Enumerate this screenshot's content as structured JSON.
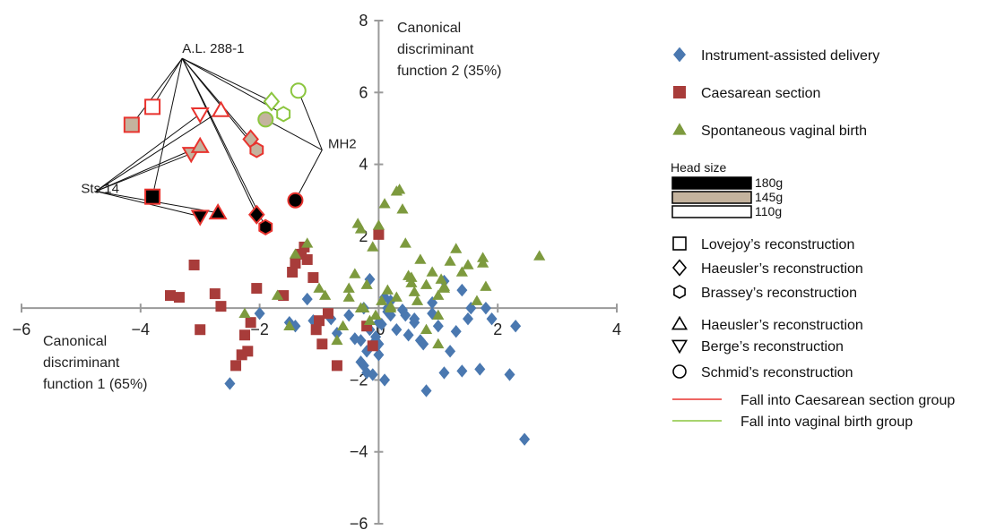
{
  "chart_data": {
    "type": "scatter",
    "xlabel": [
      "Canonical",
      "discriminant",
      "function 1 (65%)"
    ],
    "ylabel": [
      "Canonical",
      "discriminant",
      "function 2 (35%)"
    ],
    "xlim": [
      -6,
      4
    ],
    "ylim": [
      -6,
      8
    ],
    "x_ticks": [
      "−6",
      "−4",
      "−2",
      "0",
      "2",
      "4"
    ],
    "y_ticks": [
      "−6",
      "−4",
      "−2",
      "2",
      "4",
      "6",
      "8"
    ],
    "grid": false,
    "legend_position": "right",
    "series": [
      {
        "name": "Instrument-assisted delivery",
        "marker": "diamond",
        "color": "#4a78b0",
        "x": [
          -2.5,
          -2.0,
          -1.5,
          -1.1,
          -1.2,
          -1.4,
          -0.8,
          -0.7,
          -0.5,
          -0.4,
          -0.3,
          -0.25,
          -0.2,
          -0.15,
          -0.1,
          -0.05,
          0.0,
          0.05,
          0.1,
          0.15,
          -0.3,
          -0.2,
          -0.1,
          0.0,
          0.1,
          0.2,
          0.3,
          0.4,
          0.5,
          0.6,
          0.7,
          0.8,
          0.9,
          1.0,
          1.1,
          1.2,
          1.3,
          1.4,
          1.5,
          1.55,
          1.7,
          1.9,
          2.2,
          2.3,
          2.45,
          -0.25,
          -0.15,
          0.2,
          0.45,
          0.9,
          1.1,
          1.4,
          1.8,
          0.6,
          0.75,
          0.0,
          0.15
        ],
        "y": [
          -2.1,
          -0.15,
          -0.4,
          -0.35,
          0.25,
          -0.5,
          -0.3,
          -0.7,
          -0.2,
          -0.85,
          -0.9,
          -1.6,
          -1.2,
          -0.6,
          -1.0,
          -0.8,
          -0.4,
          -0.45,
          0.3,
          -0.1,
          -1.5,
          -1.8,
          -1.85,
          -1.3,
          -2.0,
          -0.2,
          -0.6,
          -0.05,
          -0.75,
          -0.4,
          -0.9,
          -2.3,
          -0.15,
          -0.5,
          -1.8,
          -1.2,
          -0.65,
          -1.75,
          -0.3,
          0.0,
          -1.7,
          -0.3,
          -1.85,
          -0.5,
          -3.65,
          0.0,
          0.8,
          0.2,
          -0.2,
          0.15,
          0.75,
          0.5,
          0.0,
          -0.3,
          -1.0,
          -1.0,
          0.0
        ]
      },
      {
        "name": "Caesarean section",
        "marker": "square",
        "color": "#a83c3a",
        "x": [
          -3.5,
          -3.35,
          -3.1,
          -3.0,
          -2.75,
          -2.65,
          -2.4,
          -2.3,
          -2.25,
          -2.2,
          -2.15,
          -2.05,
          -1.6,
          -1.45,
          -1.4,
          -1.3,
          -1.25,
          -1.2,
          -1.1,
          -1.05,
          -1.0,
          -0.95,
          -0.85,
          -0.7,
          -0.2,
          -0.1,
          0.0
        ],
        "y": [
          0.35,
          0.3,
          1.2,
          -0.6,
          0.4,
          0.05,
          -1.6,
          -1.3,
          -0.75,
          -1.2,
          -0.4,
          0.55,
          0.35,
          1.0,
          1.25,
          1.5,
          1.7,
          1.35,
          0.85,
          -0.6,
          -0.35,
          -1.0,
          -0.15,
          -1.6,
          -0.5,
          -1.05,
          2.05
        ]
      },
      {
        "name": "Spontaneous vaginal birth",
        "marker": "triangle",
        "color": "#7d9a3e",
        "x": [
          -2.25,
          -1.7,
          -1.5,
          -1.4,
          -1.2,
          -1.0,
          -0.9,
          -0.7,
          -0.6,
          -0.5,
          -0.4,
          -0.35,
          -0.3,
          -0.2,
          -0.1,
          -0.05,
          0.0,
          0.1,
          0.15,
          0.2,
          0.3,
          0.35,
          0.4,
          0.45,
          0.5,
          0.55,
          0.6,
          0.7,
          0.8,
          0.9,
          1.0,
          1.05,
          1.1,
          1.2,
          1.3,
          1.4,
          1.5,
          1.65,
          1.75,
          1.8,
          2.7,
          -0.3,
          -0.15,
          0.05,
          0.55,
          0.65,
          1.0,
          1.1,
          1.75,
          -0.5,
          -0.25,
          0.2,
          0.3,
          0.8,
          1.0
        ],
        "y": [
          -0.15,
          0.35,
          -0.5,
          1.5,
          1.8,
          0.55,
          0.35,
          -0.9,
          -0.5,
          0.55,
          0.95,
          2.35,
          2.2,
          0.65,
          1.7,
          -0.2,
          2.3,
          2.9,
          0.5,
          0.05,
          3.25,
          3.3,
          2.75,
          1.8,
          0.9,
          0.7,
          0.45,
          1.35,
          -0.6,
          1.0,
          -1.0,
          0.8,
          0.6,
          1.3,
          1.65,
          1.0,
          1.2,
          0.2,
          1.4,
          0.6,
          1.45,
          0.0,
          -0.35,
          0.2,
          0.85,
          0.2,
          0.35,
          0.55,
          1.25,
          0.3,
          0.0,
          0.0,
          0.3,
          0.65,
          -0.2
        ]
      }
    ],
    "fossils": [
      {
        "specimen": "A.L. 288-1",
        "reconstruction": "Lovejoy",
        "marker": "square",
        "head_size": "110g",
        "x": -3.8,
        "y": 5.6,
        "group": "caesarean"
      },
      {
        "specimen": "A.L. 288-1",
        "reconstruction": "Lovejoy",
        "marker": "square",
        "head_size": "145g",
        "x": -4.15,
        "y": 5.1,
        "group": "caesarean"
      },
      {
        "specimen": "A.L. 288-1",
        "reconstruction": "Lovejoy",
        "marker": "square",
        "head_size": "180g",
        "x": -3.8,
        "y": 3.1,
        "group": "caesarean"
      },
      {
        "specimen": "Sts 14",
        "reconstruction": "Berge",
        "marker": "triangle-down",
        "head_size": "110g",
        "x": -3.0,
        "y": 5.4,
        "group": "caesarean"
      },
      {
        "specimen": "Sts 14",
        "reconstruction": "Haeusler",
        "marker": "triangle",
        "head_size": "110g",
        "x": -2.65,
        "y": 5.5,
        "group": "caesarean"
      },
      {
        "specimen": "Sts 14",
        "reconstruction": "Berge",
        "marker": "triangle-down",
        "head_size": "145g",
        "x": -3.15,
        "y": 4.3,
        "group": "caesarean"
      },
      {
        "specimen": "Sts 14",
        "reconstruction": "Haeusler",
        "marker": "triangle",
        "head_size": "145g",
        "x": -3.0,
        "y": 4.5,
        "group": "caesarean"
      },
      {
        "specimen": "Sts 14",
        "reconstruction": "Berge",
        "marker": "triangle-down",
        "head_size": "180g",
        "x": -3.0,
        "y": 2.55,
        "group": "caesarean"
      },
      {
        "specimen": "Sts 14",
        "reconstruction": "Haeusler",
        "marker": "triangle",
        "head_size": "180g",
        "x": -2.7,
        "y": 2.65,
        "group": "caesarean"
      },
      {
        "specimen": "A.L. 288-1",
        "reconstruction": "Haeusler",
        "marker": "diamond",
        "head_size": "145g",
        "x": -2.15,
        "y": 4.7,
        "group": "caesarean"
      },
      {
        "specimen": "A.L. 288-1",
        "reconstruction": "Brassey",
        "marker": "hexagon",
        "head_size": "145g",
        "x": -2.05,
        "y": 4.4,
        "group": "caesarean"
      },
      {
        "specimen": "A.L. 288-1",
        "reconstruction": "Haeusler",
        "marker": "diamond",
        "head_size": "180g",
        "x": -2.05,
        "y": 2.6,
        "group": "caesarean"
      },
      {
        "specimen": "A.L. 288-1",
        "reconstruction": "Brassey",
        "marker": "hexagon",
        "head_size": "180g",
        "x": -1.9,
        "y": 2.25,
        "group": "caesarean"
      },
      {
        "specimen": "A.L. 288-1",
        "reconstruction": "Haeusler",
        "marker": "diamond",
        "head_size": "110g",
        "x": -1.8,
        "y": 5.75,
        "group": "vaginal"
      },
      {
        "specimen": "A.L. 288-1",
        "reconstruction": "Brassey",
        "marker": "hexagon",
        "head_size": "110g",
        "x": -1.6,
        "y": 5.4,
        "group": "vaginal"
      },
      {
        "specimen": "MH2",
        "reconstruction": "Schmid",
        "marker": "circle",
        "head_size": "145g",
        "x": -1.9,
        "y": 5.25,
        "group": "vaginal"
      },
      {
        "specimen": "MH2",
        "reconstruction": "Schmid",
        "marker": "circle",
        "head_size": "110g",
        "x": -1.35,
        "y": 6.05,
        "group": "vaginal"
      },
      {
        "specimen": "MH2",
        "reconstruction": "Schmid",
        "marker": "circle",
        "head_size": "180g",
        "x": -1.4,
        "y": 3.0,
        "group": "caesarean"
      }
    ],
    "annotations": [
      {
        "text": "A.L. 288-1",
        "x": -3.3,
        "y": 7.1
      },
      {
        "text": "Sts 14",
        "x": -5.0,
        "y": 3.2
      },
      {
        "text": "MH2",
        "x": -0.85,
        "y": 4.45
      }
    ],
    "legend": {
      "items": [
        {
          "marker": "diamond",
          "color": "#4a78b0",
          "label": "Instrument-assisted delivery"
        },
        {
          "marker": "square",
          "color": "#a83c3a",
          "label": "Caesarean section"
        },
        {
          "marker": "triangle",
          "color": "#7d9a3e",
          "label": "Spontaneous vaginal birth"
        }
      ],
      "head_size_title": "Head size",
      "head_sizes": [
        {
          "label": "180g",
          "color": "#000000"
        },
        {
          "label": "145g",
          "color": "#c4b39e"
        },
        {
          "label": "110g",
          "color": "#ffffff"
        }
      ],
      "shapes": [
        {
          "marker": "square",
          "label": "Lovejoy’s reconstruction"
        },
        {
          "marker": "diamond",
          "label": "Haeusler’s reconstruction"
        },
        {
          "marker": "hexagon",
          "label": "Brassey’s reconstruction"
        },
        {
          "marker": "triangle",
          "label": "Haeusler’s reconstruction"
        },
        {
          "marker": "triangle-down",
          "label": "Berge’s reconstruction"
        },
        {
          "marker": "circle",
          "label": "Schmid’s reconstruction"
        }
      ],
      "lines": [
        {
          "color": "#e8332e",
          "label": "Fall into Caesarean section group"
        },
        {
          "color": "#8cc63f",
          "label": "Fall into vaginal birth group"
        }
      ]
    },
    "colors": {
      "axis": "#9a9a9a",
      "caesarean_group_edge": "#e8332e",
      "vaginal_group_edge": "#8cc63f"
    }
  }
}
